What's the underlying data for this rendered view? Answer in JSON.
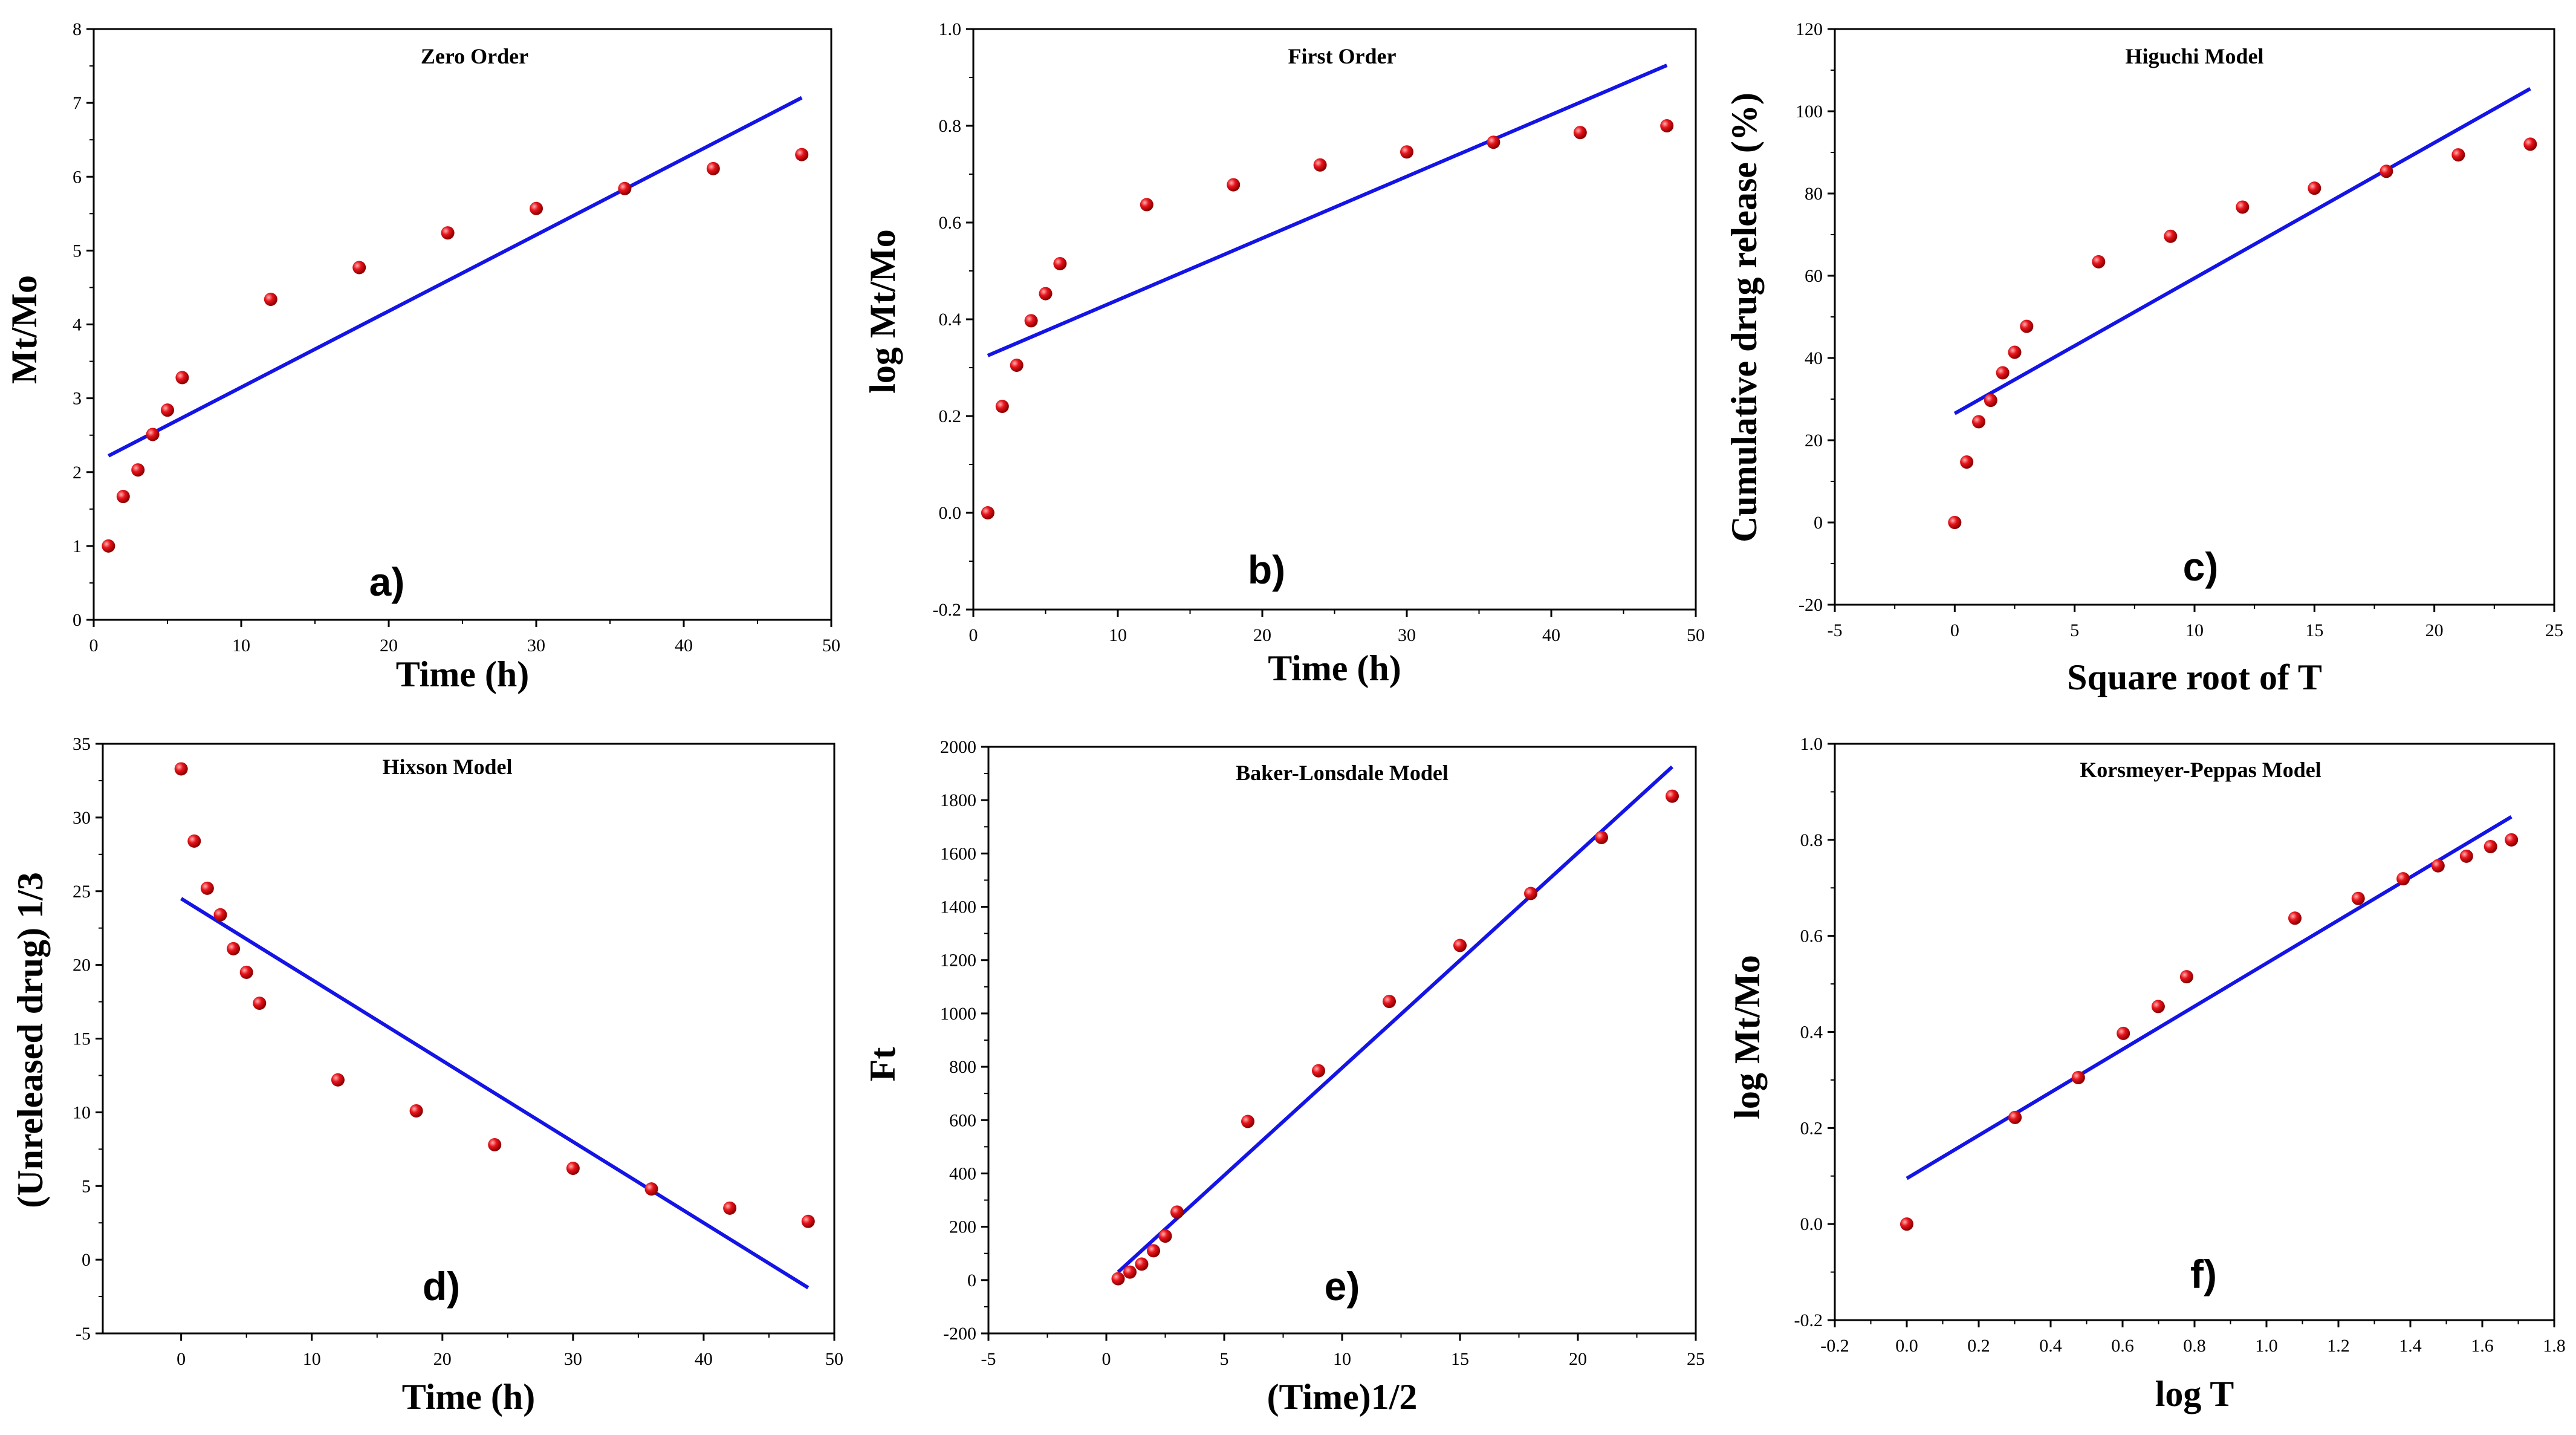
{
  "colors": {
    "points": "#e8141c",
    "fit_line": "#1414e6",
    "axes": "#000000"
  },
  "chart_data": [
    {
      "id": "a",
      "type": "scatter",
      "title": "Zero Order",
      "panel_label": "a)",
      "xlabel": "Time (h)",
      "ylabel": "Mt/Mo",
      "xlim": [
        0,
        50
      ],
      "ylim": [
        0,
        8
      ],
      "xticks": [
        0,
        10,
        20,
        30,
        40,
        50
      ],
      "yticks": [
        0,
        1,
        2,
        3,
        4,
        5,
        6,
        7,
        8
      ],
      "series": [
        {
          "name": "data",
          "x": [
            1,
            2,
            3,
            4,
            5,
            6,
            12,
            18,
            24,
            30,
            36,
            42,
            48
          ],
          "y": [
            1.0,
            1.67,
            2.03,
            2.51,
            2.84,
            3.28,
            4.34,
            4.77,
            5.24,
            5.57,
            5.84,
            6.11,
            6.3
          ]
        }
      ],
      "fit": {
        "x": [
          1,
          48
        ],
        "y": [
          2.22,
          7.07
        ]
      }
    },
    {
      "id": "b",
      "type": "scatter",
      "title": "First Order",
      "panel_label": "b)",
      "xlabel": "Time (h)",
      "ylabel": "log Mt/Mo",
      "xlim": [
        0,
        50
      ],
      "ylim": [
        -0.2,
        1.0
      ],
      "xticks": [
        0,
        10,
        20,
        30,
        40,
        50
      ],
      "yticks": [
        -0.2,
        0.0,
        0.2,
        0.4,
        0.6,
        0.8,
        1.0
      ],
      "series": [
        {
          "name": "data",
          "x": [
            1,
            2,
            3,
            4,
            5,
            6,
            12,
            18,
            24,
            30,
            36,
            42,
            48
          ],
          "y": [
            0.0,
            0.22,
            0.305,
            0.397,
            0.453,
            0.515,
            0.637,
            0.678,
            0.719,
            0.746,
            0.766,
            0.786,
            0.8
          ]
        }
      ],
      "fit": {
        "x": [
          1,
          48
        ],
        "y": [
          0.325,
          0.925
        ]
      }
    },
    {
      "id": "c",
      "type": "scatter",
      "title": "Higuchi Model",
      "panel_label": "c)",
      "xlabel": "Square root of T",
      "ylabel": "Cumulative drug release (%)",
      "xlim": [
        -5,
        25
      ],
      "ylim": [
        -20,
        120
      ],
      "xticks": [
        -5,
        0,
        5,
        10,
        15,
        20,
        25
      ],
      "yticks": [
        -20,
        0,
        20,
        40,
        60,
        80,
        100,
        120
      ],
      "series": [
        {
          "name": "data",
          "x": [
            0,
            0.5,
            1,
            1.5,
            2,
            2.5,
            3,
            6,
            9,
            12,
            15,
            18,
            21,
            24
          ],
          "y": [
            0,
            14.7,
            24.5,
            29.7,
            36.4,
            41.4,
            47.7,
            63.4,
            69.6,
            76.7,
            81.3,
            85.4,
            89.4,
            92.0
          ]
        }
      ],
      "fit": {
        "x": [
          0,
          24
        ],
        "y": [
          26.5,
          105.5
        ]
      }
    },
    {
      "id": "d",
      "type": "scatter",
      "title": "Hixson Model",
      "panel_label": "d)",
      "xlabel": "Time (h)",
      "ylabel": "(Unreleased drug) 1/3",
      "xlim": [
        -6,
        50
      ],
      "ylim": [
        -5,
        35
      ],
      "xticks": [
        0,
        10,
        20,
        30,
        40,
        50
      ],
      "yticks": [
        -5,
        0,
        5,
        10,
        15,
        20,
        25,
        30,
        35
      ],
      "series": [
        {
          "name": "data",
          "x": [
            0,
            1,
            2,
            3,
            4,
            5,
            6,
            12,
            18,
            24,
            30,
            36,
            42,
            48
          ],
          "y": [
            33.3,
            28.4,
            25.2,
            23.4,
            21.1,
            19.5,
            17.4,
            12.2,
            10.1,
            7.8,
            6.2,
            4.8,
            3.5,
            2.6
          ]
        }
      ],
      "fit": {
        "x": [
          0,
          48
        ],
        "y": [
          24.5,
          -1.9
        ]
      }
    },
    {
      "id": "e",
      "type": "scatter",
      "title": "Baker-Lonsdale Model",
      "panel_label": "e)",
      "xlabel": "(Time)1/2",
      "ylabel": "Ft",
      "xlim": [
        -5,
        25
      ],
      "ylim": [
        -200,
        2000
      ],
      "xticks": [
        -5,
        0,
        5,
        10,
        15,
        20,
        25
      ],
      "yticks": [
        -200,
        0,
        200,
        400,
        600,
        800,
        1000,
        1200,
        1400,
        1600,
        1800,
        2000
      ],
      "series": [
        {
          "name": "data",
          "x": [
            0.5,
            1,
            1.5,
            2,
            2.5,
            3,
            6,
            9,
            12,
            15,
            18,
            21,
            24
          ],
          "y": [
            5,
            30,
            60,
            110,
            165,
            255,
            595,
            785,
            1045,
            1255,
            1450,
            1660,
            1815
          ]
        }
      ],
      "fit": {
        "x": [
          0.5,
          24
        ],
        "y": [
          30,
          1925
        ]
      }
    },
    {
      "id": "f",
      "type": "scatter",
      "title": "Korsmeyer-Peppas Model",
      "panel_label": "f)",
      "xlabel": "log T",
      "ylabel": "log Mt/Mo",
      "xlim": [
        -0.2,
        1.8
      ],
      "ylim": [
        -0.2,
        1.0
      ],
      "xticks": [
        -0.2,
        0.0,
        0.2,
        0.4,
        0.6,
        0.8,
        1.0,
        1.2,
        1.4,
        1.6,
        1.8
      ],
      "yticks": [
        -0.2,
        0.0,
        0.2,
        0.4,
        0.6,
        0.8,
        1.0
      ],
      "series": [
        {
          "name": "data",
          "x": [
            0,
            0.301,
            0.477,
            0.602,
            0.699,
            0.778,
            1.079,
            1.255,
            1.38,
            1.477,
            1.556,
            1.623,
            1.681
          ],
          "y": [
            0.0,
            0.222,
            0.305,
            0.397,
            0.453,
            0.515,
            0.637,
            0.678,
            0.719,
            0.746,
            0.766,
            0.786,
            0.8
          ]
        }
      ],
      "fit": {
        "x": [
          0,
          1.681
        ],
        "y": [
          0.095,
          0.848
        ]
      }
    }
  ]
}
